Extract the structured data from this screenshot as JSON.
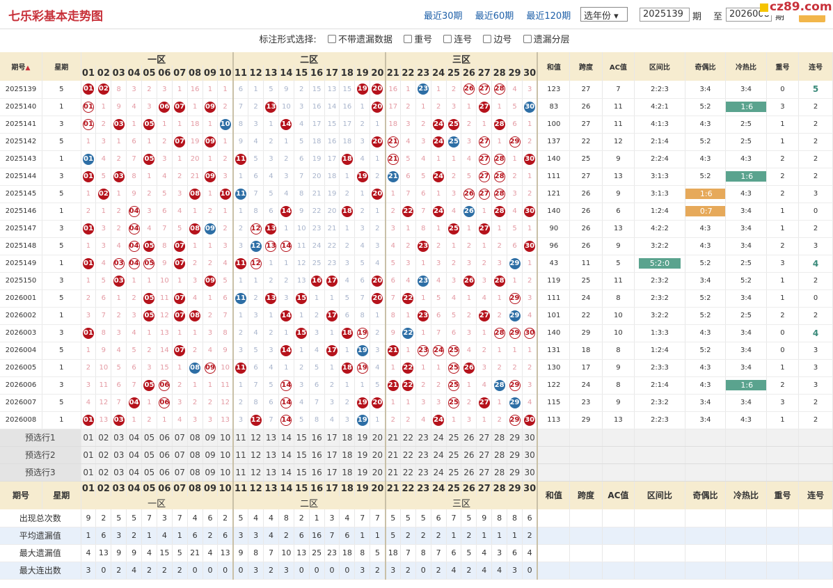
{
  "site": {
    "title": "七乐彩基本走势图",
    "links": [
      "最近30期",
      "最近60期",
      "最近120期"
    ],
    "year_select": "选年份",
    "from": "2025139",
    "from_label": "期",
    "to": "2026008",
    "to_label": "期",
    "range_label": "至",
    "logo": "cz89.com"
  },
  "options": {
    "label": "标注形式选择:",
    "items": [
      "不带遗漏数据",
      "重号",
      "连号",
      "边号",
      "遗漏分层"
    ]
  },
  "headers": {
    "period": "期号",
    "week": "星期",
    "zones": [
      "一区",
      "二区",
      "三区"
    ],
    "nums": [
      "01",
      "02",
      "03",
      "04",
      "05",
      "06",
      "07",
      "08",
      "09",
      "10",
      "11",
      "12",
      "13",
      "14",
      "15",
      "16",
      "17",
      "18",
      "19",
      "20",
      "21",
      "22",
      "23",
      "24",
      "25",
      "26",
      "27",
      "28",
      "29",
      "30"
    ],
    "stats": [
      "和值",
      "跨度",
      "AC值",
      "区间比",
      "奇偶比",
      "冷热比",
      "重号",
      "连号"
    ]
  },
  "rows": [
    {
      "p": "2025139",
      "w": "5",
      "c": [
        "R01",
        "R02",
        "8",
        "3",
        "2",
        "3",
        "1",
        "16",
        "1",
        "1",
        "6",
        "1",
        "5",
        "9",
        "2",
        "15",
        "13",
        "15",
        "R19",
        "R20",
        "16",
        "1",
        "B23",
        "1",
        "2",
        "O26",
        "O27",
        "O28",
        "4",
        "3"
      ],
      "s": [
        "123",
        "27",
        "7",
        "2:2:3",
        "3:4",
        "3:4",
        "0",
        "5"
      ],
      "lh": true
    },
    {
      "p": "2025140",
      "w": "1",
      "c": [
        "O01",
        "1",
        "9",
        "4",
        "3",
        "R06",
        "R07",
        "1",
        "R09",
        "2",
        "7",
        "2",
        "R13",
        "10",
        "3",
        "16",
        "14",
        "16",
        "1",
        "R20",
        "17",
        "2",
        "1",
        "2",
        "3",
        "1",
        "R27",
        "1",
        "5",
        "B30"
      ],
      "s": [
        "83",
        "26",
        "11",
        "4:2:1",
        "5:2",
        "1:6",
        "3",
        "2"
      ],
      "rt": "green"
    },
    {
      "p": "2025141",
      "w": "3",
      "c": [
        "O01",
        "2",
        "R03",
        "1",
        "R05",
        "1",
        "1",
        "18",
        "1",
        "B10",
        "8",
        "3",
        "1",
        "R14",
        "4",
        "17",
        "15",
        "17",
        "2",
        "1",
        "18",
        "3",
        "2",
        "R24",
        "R25",
        "2",
        "1",
        "R28",
        "6",
        "1"
      ],
      "s": [
        "100",
        "27",
        "11",
        "4:1:3",
        "4:3",
        "2:5",
        "1",
        "2"
      ]
    },
    {
      "p": "2025142",
      "w": "5",
      "c": [
        "1",
        "3",
        "1",
        "6",
        "1",
        "2",
        "R07",
        "19",
        "R09",
        "1",
        "9",
        "4",
        "2",
        "1",
        "5",
        "18",
        "16",
        "18",
        "3",
        "R20",
        "O21",
        "4",
        "3",
        "R24",
        "B25",
        "3",
        "O27",
        "1",
        "O29",
        "2"
      ],
      "s": [
        "137",
        "22",
        "12",
        "2:1:4",
        "5:2",
        "2:5",
        "1",
        "2"
      ]
    },
    {
      "p": "2025143",
      "w": "1",
      "c": [
        "B01",
        "4",
        "2",
        "7",
        "R05",
        "3",
        "1",
        "20",
        "1",
        "2",
        "R11",
        "5",
        "3",
        "2",
        "6",
        "19",
        "17",
        "R18",
        "4",
        "1",
        "O21",
        "5",
        "4",
        "1",
        "1",
        "4",
        "O27",
        "O28",
        "1",
        "R30"
      ],
      "s": [
        "140",
        "25",
        "9",
        "2:2:4",
        "4:3",
        "4:3",
        "2",
        "2"
      ]
    },
    {
      "p": "2025144",
      "w": "3",
      "c": [
        "R01",
        "5",
        "R03",
        "8",
        "1",
        "4",
        "2",
        "21",
        "R09",
        "3",
        "1",
        "6",
        "4",
        "3",
        "7",
        "20",
        "18",
        "1",
        "R19",
        "2",
        "B21",
        "6",
        "5",
        "R24",
        "2",
        "5",
        "O27",
        "O28",
        "2",
        "1"
      ],
      "s": [
        "111",
        "27",
        "13",
        "3:1:3",
        "5:2",
        "1:6",
        "2",
        "2"
      ],
      "g": true,
      "rt": "green"
    },
    {
      "p": "2025145",
      "w": "5",
      "c": [
        "1",
        "R02",
        "1",
        "9",
        "2",
        "5",
        "3",
        "R08",
        "1",
        "R10",
        "B11",
        "7",
        "5",
        "4",
        "8",
        "21",
        "19",
        "2",
        "1",
        "R20",
        "1",
        "7",
        "6",
        "1",
        "3",
        "O26",
        "O27",
        "O28",
        "3",
        "2"
      ],
      "s": [
        "121",
        "26",
        "9",
        "3:1:3",
        "1:6",
        "4:3",
        "2",
        "3"
      ],
      "mt": "orange"
    },
    {
      "p": "2025146",
      "w": "1",
      "c": [
        "2",
        "1",
        "2",
        "O04",
        "3",
        "6",
        "4",
        "1",
        "2",
        "1",
        "1",
        "8",
        "6",
        "R14",
        "9",
        "22",
        "20",
        "R18",
        "2",
        "1",
        "2",
        "R22",
        "7",
        "R24",
        "4",
        "B26",
        "1",
        "R28",
        "4",
        "R30"
      ],
      "s": [
        "140",
        "26",
        "6",
        "1:2:4",
        "0:7",
        "3:4",
        "1",
        "0"
      ],
      "mt": "orange"
    },
    {
      "p": "2025147",
      "w": "3",
      "c": [
        "R01",
        "3",
        "2",
        "O04",
        "4",
        "7",
        "5",
        "R08",
        "B09",
        "2",
        "2",
        "O12",
        "R13",
        "1",
        "10",
        "23",
        "21",
        "1",
        "3",
        "2",
        "3",
        "1",
        "8",
        "1",
        "R25",
        "1",
        "R27",
        "1",
        "5",
        "1"
      ],
      "s": [
        "90",
        "26",
        "13",
        "4:2:2",
        "4:3",
        "3:4",
        "1",
        "2"
      ]
    },
    {
      "p": "2025148",
      "w": "5",
      "c": [
        "1",
        "3",
        "4",
        "O04",
        "R05",
        "8",
        "R07",
        "1",
        "1",
        "3",
        "3",
        "B12",
        "O13",
        "O14",
        "11",
        "24",
        "22",
        "2",
        "4",
        "3",
        "4",
        "2",
        "R23",
        "2",
        "1",
        "2",
        "1",
        "2",
        "6",
        "R30"
      ],
      "s": [
        "96",
        "26",
        "9",
        "3:2:2",
        "4:3",
        "3:4",
        "2",
        "3"
      ]
    },
    {
      "p": "2025149",
      "w": "1",
      "c": [
        "R01",
        "4",
        "O03",
        "O04",
        "O05",
        "9",
        "R07",
        "2",
        "2",
        "4",
        "R11",
        "O12",
        "1",
        "1",
        "12",
        "25",
        "23",
        "3",
        "5",
        "4",
        "5",
        "3",
        "1",
        "3",
        "2",
        "3",
        "2",
        "3",
        "B29",
        "1"
      ],
      "s": [
        "43",
        "11",
        "5",
        "5:2:0",
        "5:2",
        "2:5",
        "3",
        "4"
      ],
      "g": true,
      "lh": true,
      "qt": "green"
    },
    {
      "p": "2025150",
      "w": "3",
      "c": [
        "1",
        "5",
        "R03",
        "1",
        "1",
        "10",
        "1",
        "3",
        "R09",
        "5",
        "1",
        "1",
        "2",
        "2",
        "13",
        "R16",
        "R17",
        "4",
        "6",
        "R20",
        "6",
        "4",
        "B23",
        "4",
        "3",
        "R26",
        "3",
        "R28",
        "1",
        "2"
      ],
      "s": [
        "119",
        "25",
        "11",
        "2:3:2",
        "3:4",
        "5:2",
        "1",
        "2"
      ]
    },
    {
      "p": "2026001",
      "w": "5",
      "c": [
        "2",
        "6",
        "1",
        "2",
        "R05",
        "11",
        "R07",
        "4",
        "1",
        "6",
        "B11",
        "2",
        "R13",
        "3",
        "R15",
        "1",
        "1",
        "5",
        "7",
        "R20",
        "7",
        "R22",
        "1",
        "5",
        "4",
        "1",
        "4",
        "1",
        "O29",
        "3"
      ],
      "s": [
        "111",
        "24",
        "8",
        "2:3:2",
        "5:2",
        "3:4",
        "1",
        "0"
      ]
    },
    {
      "p": "2026002",
      "w": "1",
      "c": [
        "3",
        "7",
        "2",
        "3",
        "R05",
        "12",
        "R07",
        "R08",
        "2",
        "7",
        "1",
        "3",
        "1",
        "R14",
        "1",
        "2",
        "R17",
        "6",
        "8",
        "1",
        "8",
        "1",
        "R23",
        "6",
        "5",
        "2",
        "R27",
        "2",
        "B29",
        "4"
      ],
      "s": [
        "101",
        "22",
        "10",
        "3:2:2",
        "5:2",
        "2:5",
        "2",
        "2"
      ]
    },
    {
      "p": "2026003",
      "w": "3",
      "c": [
        "R01",
        "8",
        "3",
        "4",
        "1",
        "13",
        "1",
        "1",
        "3",
        "8",
        "2",
        "4",
        "2",
        "1",
        "R15",
        "3",
        "1",
        "R18",
        "O19",
        "2",
        "9",
        "B22",
        "1",
        "7",
        "6",
        "3",
        "1",
        "O28",
        "O29",
        "O30"
      ],
      "s": [
        "140",
        "29",
        "10",
        "1:3:3",
        "4:3",
        "3:4",
        "0",
        "4"
      ],
      "lh": true
    },
    {
      "p": "2026004",
      "w": "5",
      "c": [
        "1",
        "9",
        "4",
        "5",
        "2",
        "14",
        "R07",
        "2",
        "4",
        "9",
        "3",
        "5",
        "3",
        "R14",
        "1",
        "4",
        "R17",
        "1",
        "B19",
        "3",
        "R21",
        "1",
        "O23",
        "O24",
        "O25",
        "4",
        "2",
        "1",
        "1",
        "1"
      ],
      "s": [
        "131",
        "18",
        "8",
        "1:2:4",
        "5:2",
        "3:4",
        "0",
        "3"
      ],
      "g": true
    },
    {
      "p": "2026005",
      "w": "1",
      "c": [
        "2",
        "10",
        "5",
        "6",
        "3",
        "15",
        "1",
        "B08",
        "O09",
        "10",
        "R11",
        "6",
        "4",
        "1",
        "2",
        "5",
        "1",
        "R18",
        "O19",
        "4",
        "1",
        "R22",
        "1",
        "1",
        "O25",
        "R26",
        "3",
        "2",
        "2",
        "2"
      ],
      "s": [
        "130",
        "17",
        "9",
        "2:3:3",
        "4:3",
        "3:4",
        "1",
        "3"
      ]
    },
    {
      "p": "2026006",
      "w": "3",
      "c": [
        "3",
        "11",
        "6",
        "7",
        "R05",
        "O06",
        "2",
        "1",
        "1",
        "11",
        "1",
        "7",
        "5",
        "O14",
        "3",
        "6",
        "2",
        "1",
        "1",
        "5",
        "R21",
        "R22",
        "2",
        "2",
        "O25",
        "1",
        "4",
        "B28",
        "O29",
        "3"
      ],
      "s": [
        "122",
        "24",
        "8",
        "2:1:4",
        "4:3",
        "1:6",
        "2",
        "3"
      ],
      "rt": "green"
    },
    {
      "p": "2026007",
      "w": "5",
      "c": [
        "4",
        "12",
        "7",
        "R04",
        "1",
        "O06",
        "3",
        "2",
        "2",
        "12",
        "2",
        "8",
        "6",
        "O14",
        "4",
        "7",
        "3",
        "2",
        "R19",
        "R20",
        "1",
        "1",
        "3",
        "3",
        "O25",
        "2",
        "R27",
        "1",
        "B29",
        "4"
      ],
      "s": [
        "115",
        "23",
        "9",
        "2:3:2",
        "3:4",
        "3:4",
        "3",
        "2"
      ]
    },
    {
      "p": "2026008",
      "w": "1",
      "c": [
        "R01",
        "13",
        "R03",
        "1",
        "2",
        "1",
        "4",
        "3",
        "3",
        "13",
        "3",
        "R12",
        "7",
        "O14",
        "5",
        "8",
        "4",
        "3",
        "B19",
        "1",
        "2",
        "2",
        "4",
        "R24",
        "1",
        "3",
        "1",
        "2",
        "O29",
        "R30"
      ],
      "s": [
        "113",
        "29",
        "13",
        "2:2:3",
        "3:4",
        "4:3",
        "1",
        "2"
      ]
    }
  ],
  "preselect": {
    "labels": [
      "预选行1",
      "预选行2",
      "预选行3"
    ]
  },
  "footer": {
    "period": "期号",
    "week": "星期",
    "stats": [
      "和值",
      "跨度",
      "AC值",
      "区间比",
      "奇偶比",
      "冷热比",
      "重号",
      "连号"
    ]
  },
  "summary": [
    {
      "label": "出现总次数",
      "v": [
        "9",
        "2",
        "5",
        "5",
        "7",
        "3",
        "7",
        "4",
        "6",
        "2",
        "5",
        "4",
        "4",
        "8",
        "2",
        "1",
        "3",
        "4",
        "7",
        "7",
        "5",
        "5",
        "5",
        "6",
        "7",
        "5",
        "9",
        "8",
        "8",
        "6"
      ]
    },
    {
      "label": "平均遗漏值",
      "v": [
        "1",
        "6",
        "3",
        "2",
        "1",
        "4",
        "1",
        "6",
        "2",
        "6",
        "3",
        "3",
        "4",
        "2",
        "6",
        "16",
        "7",
        "6",
        "1",
        "1",
        "5",
        "2",
        "2",
        "2",
        "1",
        "2",
        "1",
        "1",
        "1",
        "2"
      ]
    },
    {
      "label": "最大遗漏值",
      "v": [
        "4",
        "13",
        "9",
        "9",
        "4",
        "15",
        "5",
        "21",
        "4",
        "13",
        "9",
        "8",
        "7",
        "10",
        "13",
        "25",
        "23",
        "18",
        "8",
        "5",
        "18",
        "7",
        "8",
        "7",
        "6",
        "5",
        "4",
        "3",
        "6",
        "4"
      ]
    },
    {
      "label": "最大连出数",
      "v": [
        "3",
        "0",
        "2",
        "4",
        "2",
        "2",
        "2",
        "0",
        "0",
        "0",
        "0",
        "3",
        "2",
        "3",
        "0",
        "0",
        "0",
        "0",
        "3",
        "2",
        "3",
        "2",
        "0",
        "2",
        "4",
        "2",
        "4",
        "4",
        "3",
        "0"
      ]
    }
  ]
}
